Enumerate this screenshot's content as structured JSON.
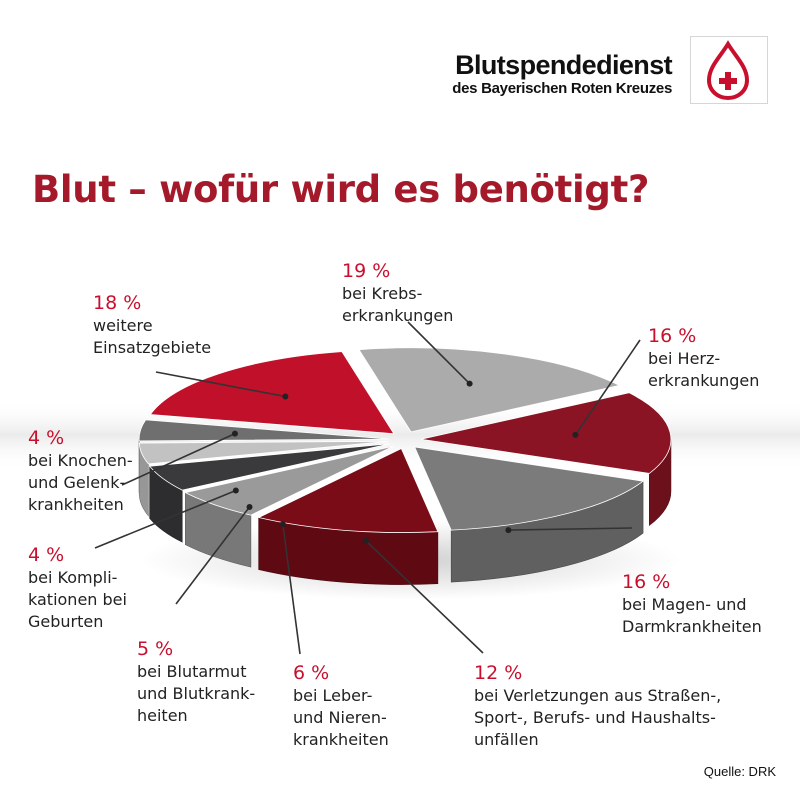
{
  "logo": {
    "name": "Blutspendedienst",
    "subtitle": "des Bayerischen Roten Kreuzes",
    "colors": {
      "drop": "#c8102e",
      "cross": "#c8102e"
    }
  },
  "title": "Blut – wofür wird es benötigt?",
  "source": "Quelle: DRK",
  "chart_data": {
    "type": "pie",
    "style": "3d-exploded",
    "title": "Blut – wofür wird es benötigt?",
    "unit": "%",
    "slices": [
      {
        "percent_label": "19 %",
        "value": 19,
        "label": "bei Krebs-\nerkrankungen",
        "color": "#ababab"
      },
      {
        "percent_label": "16 %",
        "value": 16,
        "label": "bei Herz-\nerkrankungen",
        "color": "#8a1424"
      },
      {
        "percent_label": "16 %",
        "value": 16,
        "label": "bei Magen- und\nDarmkrankheiten",
        "color": "#7b7b7b"
      },
      {
        "percent_label": "12 %",
        "value": 12,
        "label": "bei Verletzungen aus Straßen-,\nSport-, Berufs- und Haushalts-\nunfällen",
        "color": "#7a0c18"
      },
      {
        "percent_label": "6 %",
        "value": 6,
        "label": "bei Leber-\nund Nieren-\nkrankheiten",
        "color": "#9a9a9a"
      },
      {
        "percent_label": "5 %",
        "value": 5,
        "label": "bei Blutarmut\nund Blutkrank-\nheiten",
        "color": "#3a3a3c"
      },
      {
        "percent_label": "4 %",
        "value": 4,
        "label": "bei Kompli-\nkationen bei\nGeburten",
        "color": "#c2c2c2"
      },
      {
        "percent_label": "4 %",
        "value": 4,
        "label": "bei Knochen-\nund Gelenk-\nkrankheiten",
        "color": "#6f6f6f"
      },
      {
        "percent_label": "18 %",
        "value": 18,
        "label": "weitere\nEinsatzgebiete",
        "color": "#c0102a"
      }
    ]
  }
}
